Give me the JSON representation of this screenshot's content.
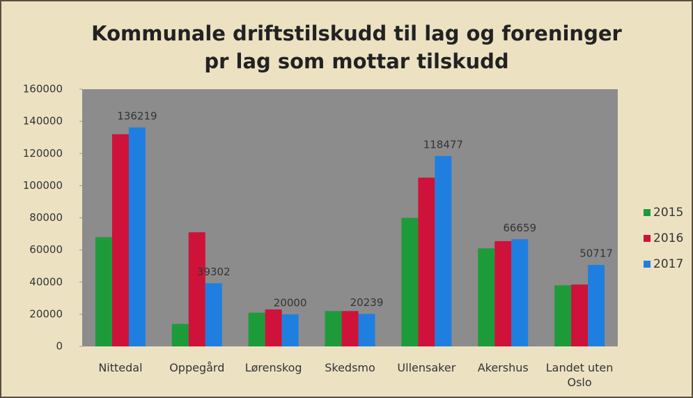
{
  "chart_data": {
    "type": "bar",
    "title": "Kommunale driftstilskudd til lag og foreninger pr lag som mottar tilskudd",
    "categories": [
      "Nittedal",
      "Oppegård",
      "Lørenskog",
      "Skedsmo",
      "Ullensaker",
      "Akershus",
      "Landet uten Oslo"
    ],
    "series": [
      {
        "name": "2015",
        "color": "#1d9b3b",
        "values": [
          68000,
          14000,
          21000,
          22000,
          80000,
          61000,
          38000
        ]
      },
      {
        "name": "2016",
        "color": "#cf1239",
        "values": [
          132000,
          71000,
          23000,
          22000,
          105000,
          65500,
          38500
        ]
      },
      {
        "name": "2017",
        "color": "#1f7fe0",
        "values": [
          136219,
          39302,
          20000,
          20239,
          118477,
          66659,
          50717
        ],
        "data_labels": true
      }
    ],
    "ylim": [
      0,
      160000
    ],
    "yticks": [
      0,
      20000,
      40000,
      60000,
      80000,
      100000,
      120000,
      140000,
      160000
    ],
    "legend": "right",
    "plot_background": "#8c8c8c"
  }
}
